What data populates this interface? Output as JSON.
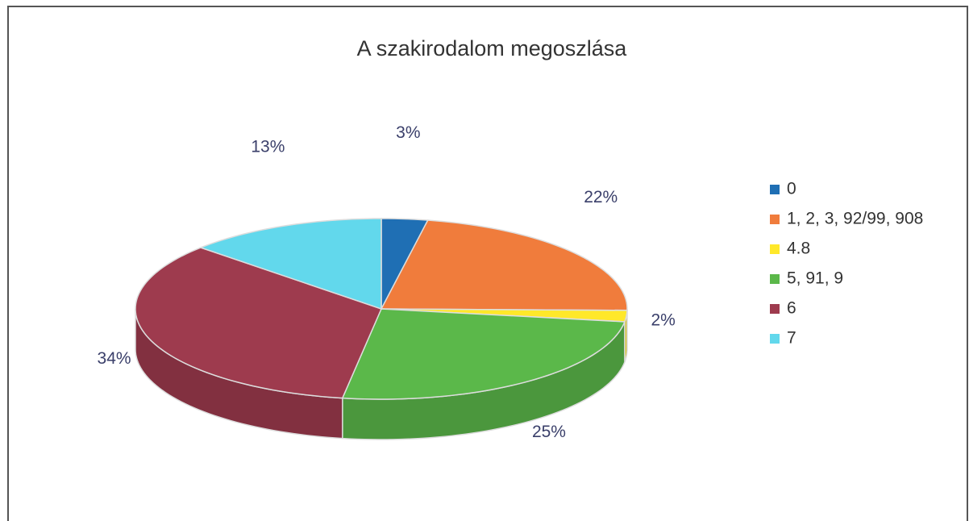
{
  "chart_data": {
    "type": "pie",
    "title": "A szakirodalom megoszlása",
    "categories": [
      "0",
      "1, 2, 3, 92/99, 908",
      "4.8",
      "5, 91, 9",
      "6",
      "7"
    ],
    "values": [
      3,
      22,
      2,
      25,
      34,
      13
    ],
    "value_labels": [
      "3%",
      "22%",
      "2%",
      "25%",
      "34%",
      "13%"
    ],
    "colors": [
      "#1f6fb4",
      "#f07c3c",
      "#ffe82a",
      "#5bb84a",
      "#9e3b4e",
      "#62d8ec"
    ],
    "legend": "right"
  }
}
